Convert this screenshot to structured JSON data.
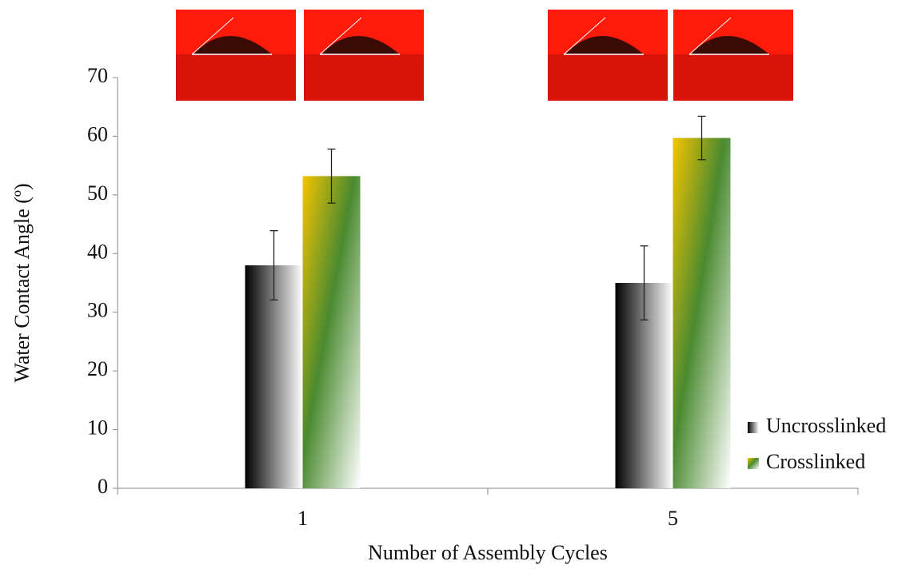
{
  "chart_data": {
    "type": "bar",
    "x_label": "Number of Assembly Cycles",
    "y_label": "Water Contact Angle (º)",
    "categories": [
      "1",
      "5"
    ],
    "series": [
      {
        "name": "Uncrosslinked",
        "color": "#000000",
        "values": [
          38,
          35
        ],
        "errors": [
          5.9,
          6.3
        ]
      },
      {
        "name": "Crosslinked",
        "color": "#4a8a30",
        "values": [
          53.2,
          59.7
        ],
        "errors": [
          4.6,
          3.7
        ]
      }
    ],
    "ylim": [
      0,
      70
    ],
    "yticks": [
      0,
      10,
      20,
      30,
      40,
      50,
      60,
      70
    ],
    "grid": false,
    "legend": "right"
  }
}
